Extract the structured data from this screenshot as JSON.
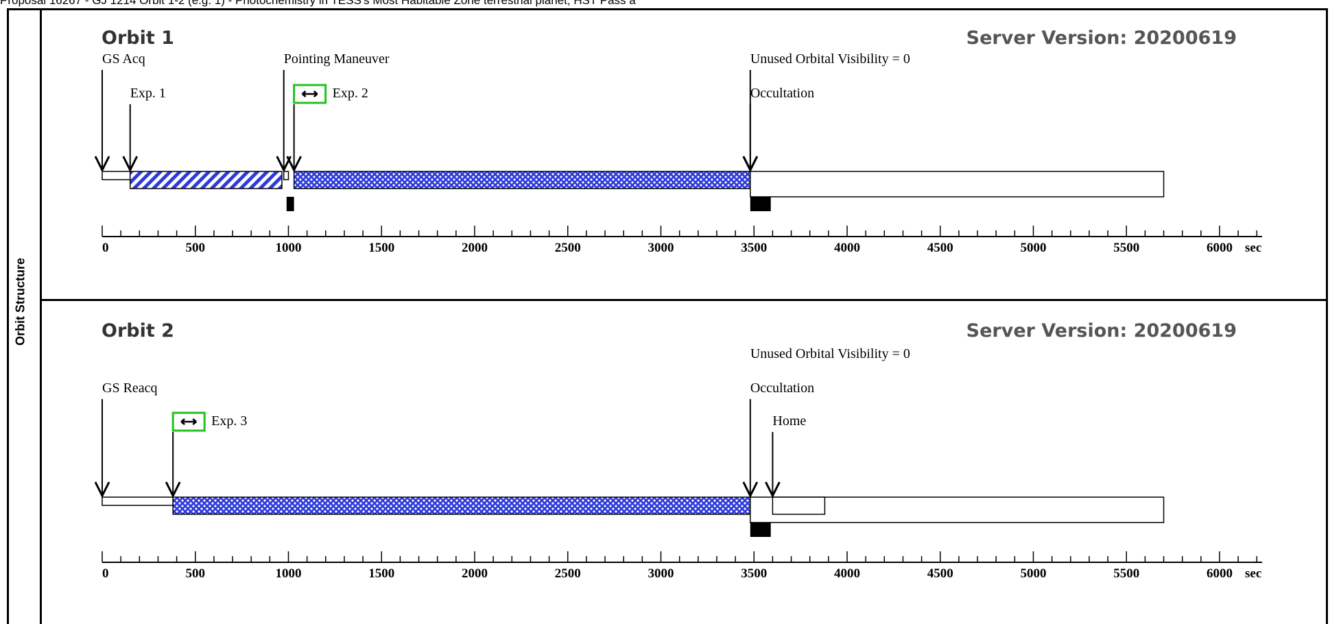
{
  "header": "Proposal 16267 - GJ 1214 Orbit 1-2 (e.g. 1) - Photochemistry in TESS's Most Habitable Zone terrestrial planet; HST Pass a",
  "side_label": "Orbit Structure",
  "colors": {
    "exposure_fill": "#2e3ad9",
    "edit_box": "#22c21c",
    "ink": "#000000"
  },
  "axis": {
    "ticks": [
      0,
      500,
      1000,
      1500,
      2000,
      2500,
      3000,
      3500,
      4000,
      4500,
      5000,
      5500,
      6000
    ],
    "unit": "sec"
  },
  "orbits": [
    {
      "title": "Orbit 1",
      "server_version": "Server Version: 20200619",
      "events": [
        {
          "label": "GS Acq",
          "time": 0,
          "row": 1
        },
        {
          "label": "Exp. 1",
          "time": 150,
          "row": 2
        },
        {
          "label": "Pointing Maneuver",
          "time": 975,
          "row": 1
        },
        {
          "label": "Exp. 2",
          "time": 1030,
          "row": 2,
          "edit_icon": true
        },
        {
          "label": "Unused Orbital Visibility = 0",
          "time": 3480,
          "row": 1
        },
        {
          "label": "Occultation",
          "time": 3480,
          "row": 2
        }
      ],
      "segments": [
        {
          "kind": "gs-acq",
          "start": 0,
          "end": 150
        },
        {
          "kind": "exp-hatch",
          "start": 150,
          "end": 965
        },
        {
          "kind": "maneuver",
          "start": 975,
          "end": 1000
        },
        {
          "kind": "exp-dots",
          "start": 1030,
          "end": 3480
        },
        {
          "kind": "occultation",
          "start": 3480,
          "end": 5700
        }
      ],
      "marks": [
        {
          "start": 990,
          "end": 1030
        },
        {
          "start": 3480,
          "end": 3590
        }
      ]
    },
    {
      "title": "Orbit 2",
      "server_version": "Server Version: 20200619",
      "events": [
        {
          "label": "Unused Orbital Visibility = 0",
          "time": 3480,
          "row": 0
        },
        {
          "label": "GS Reacq",
          "time": 0,
          "row": 1
        },
        {
          "label": "Occultation",
          "time": 3480,
          "row": 1
        },
        {
          "label": "Exp. 3",
          "time": 380,
          "row": 2,
          "edit_icon": true
        },
        {
          "label": "Home",
          "time": 3600,
          "row": 2
        }
      ],
      "segments": [
        {
          "kind": "gs-acq",
          "start": 0,
          "end": 380
        },
        {
          "kind": "exp-dots",
          "start": 380,
          "end": 3480
        },
        {
          "kind": "occultation",
          "start": 3480,
          "end": 5700
        },
        {
          "kind": "home",
          "start": 3600,
          "end": 3880
        }
      ],
      "marks": [
        {
          "start": 3480,
          "end": 3590
        }
      ]
    }
  ]
}
